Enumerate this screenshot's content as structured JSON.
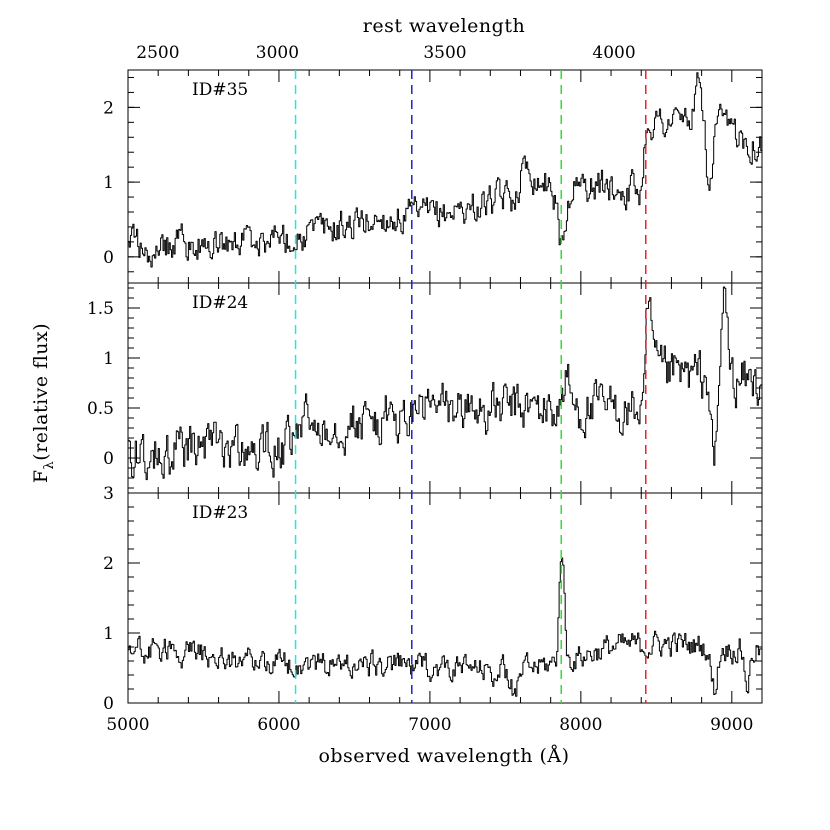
{
  "chart_data": {
    "type": "line",
    "top_axis_label": "rest wavelength",
    "top_ticks": [
      2500,
      3000,
      3500,
      4000
    ],
    "xlabel": "observed wavelength (Å)",
    "ylabel": "F",
    "ylabel_sub": "λ",
    "ylabel_rest": "(relative flux)",
    "xlim": [
      5000,
      9200
    ],
    "x_ticks": [
      5000,
      6000,
      7000,
      8000,
      9000
    ],
    "rest_ticks_observed": [
      4880,
      5990,
      7100,
      8220
    ],
    "vertical_lines": [
      {
        "x": 6110,
        "color": "#22e6e6"
      },
      {
        "x": 6880,
        "color": "#2222cc"
      },
      {
        "x": 7870,
        "color": "#33dd33"
      },
      {
        "x": 8430,
        "color": "#ee2222"
      }
    ],
    "panels": [
      {
        "label": "ID#35",
        "ylim": [
          -0.35,
          2.5
        ],
        "yticks": [
          0,
          1,
          2
        ],
        "ytick_labels": [
          "0",
          "1",
          "2"
        ],
        "baseline": [
          [
            5000,
            0.1
          ],
          [
            5500,
            0.18
          ],
          [
            6100,
            0.28
          ],
          [
            6700,
            0.52
          ],
          [
            7000,
            0.55
          ],
          [
            7400,
            0.72
          ],
          [
            7550,
            0.8
          ],
          [
            7600,
            1.05
          ],
          [
            8000,
            0.95
          ],
          [
            8400,
            0.9
          ],
          [
            8430,
            1.8
          ],
          [
            8800,
            1.85
          ],
          [
            9200,
            1.5
          ]
        ],
        "noise": 0.18,
        "seed": 35,
        "features": [
          [
            7650,
            0.2,
            40
          ],
          [
            7870,
            -0.8,
            40
          ],
          [
            8850,
            -1.0,
            25
          ],
          [
            8780,
            0.4,
            30
          ]
        ]
      },
      {
        "label": "ID#24",
        "ylim": [
          -0.35,
          1.75
        ],
        "yticks": [
          0,
          0.5,
          1,
          1.5
        ],
        "ytick_labels": [
          "0",
          "0.5",
          "1",
          "1.5"
        ],
        "baseline": [
          [
            5000,
            0.05
          ],
          [
            6100,
            0.08
          ],
          [
            6110,
            0.35
          ],
          [
            6880,
            0.38
          ],
          [
            6890,
            0.5
          ],
          [
            8420,
            0.48
          ],
          [
            8430,
            0.85
          ],
          [
            9200,
            0.75
          ]
        ],
        "noise": 0.2,
        "seed": 24,
        "features": [
          [
            8450,
            0.6,
            25
          ],
          [
            8950,
            0.9,
            25
          ],
          [
            8880,
            -0.9,
            25
          ],
          [
            7900,
            0.3,
            30
          ]
        ]
      },
      {
        "label": "ID#23",
        "ylim": [
          0,
          3
        ],
        "yticks": [
          0,
          1,
          2,
          3
        ],
        "ytick_labels": [
          "0",
          "1",
          "2",
          "3"
        ],
        "baseline": [
          [
            5000,
            0.8
          ],
          [
            5500,
            0.68
          ],
          [
            6000,
            0.58
          ],
          [
            6500,
            0.55
          ],
          [
            7000,
            0.52
          ],
          [
            7500,
            0.45
          ],
          [
            7800,
            0.55
          ],
          [
            8200,
            0.8
          ],
          [
            8600,
            0.85
          ],
          [
            9200,
            0.75
          ]
        ],
        "noise": 0.15,
        "seed": 23,
        "features": [
          [
            7870,
            1.65,
            22
          ],
          [
            7560,
            -0.45,
            25
          ],
          [
            8880,
            -0.6,
            30
          ],
          [
            9100,
            -0.5,
            25
          ]
        ]
      }
    ]
  }
}
